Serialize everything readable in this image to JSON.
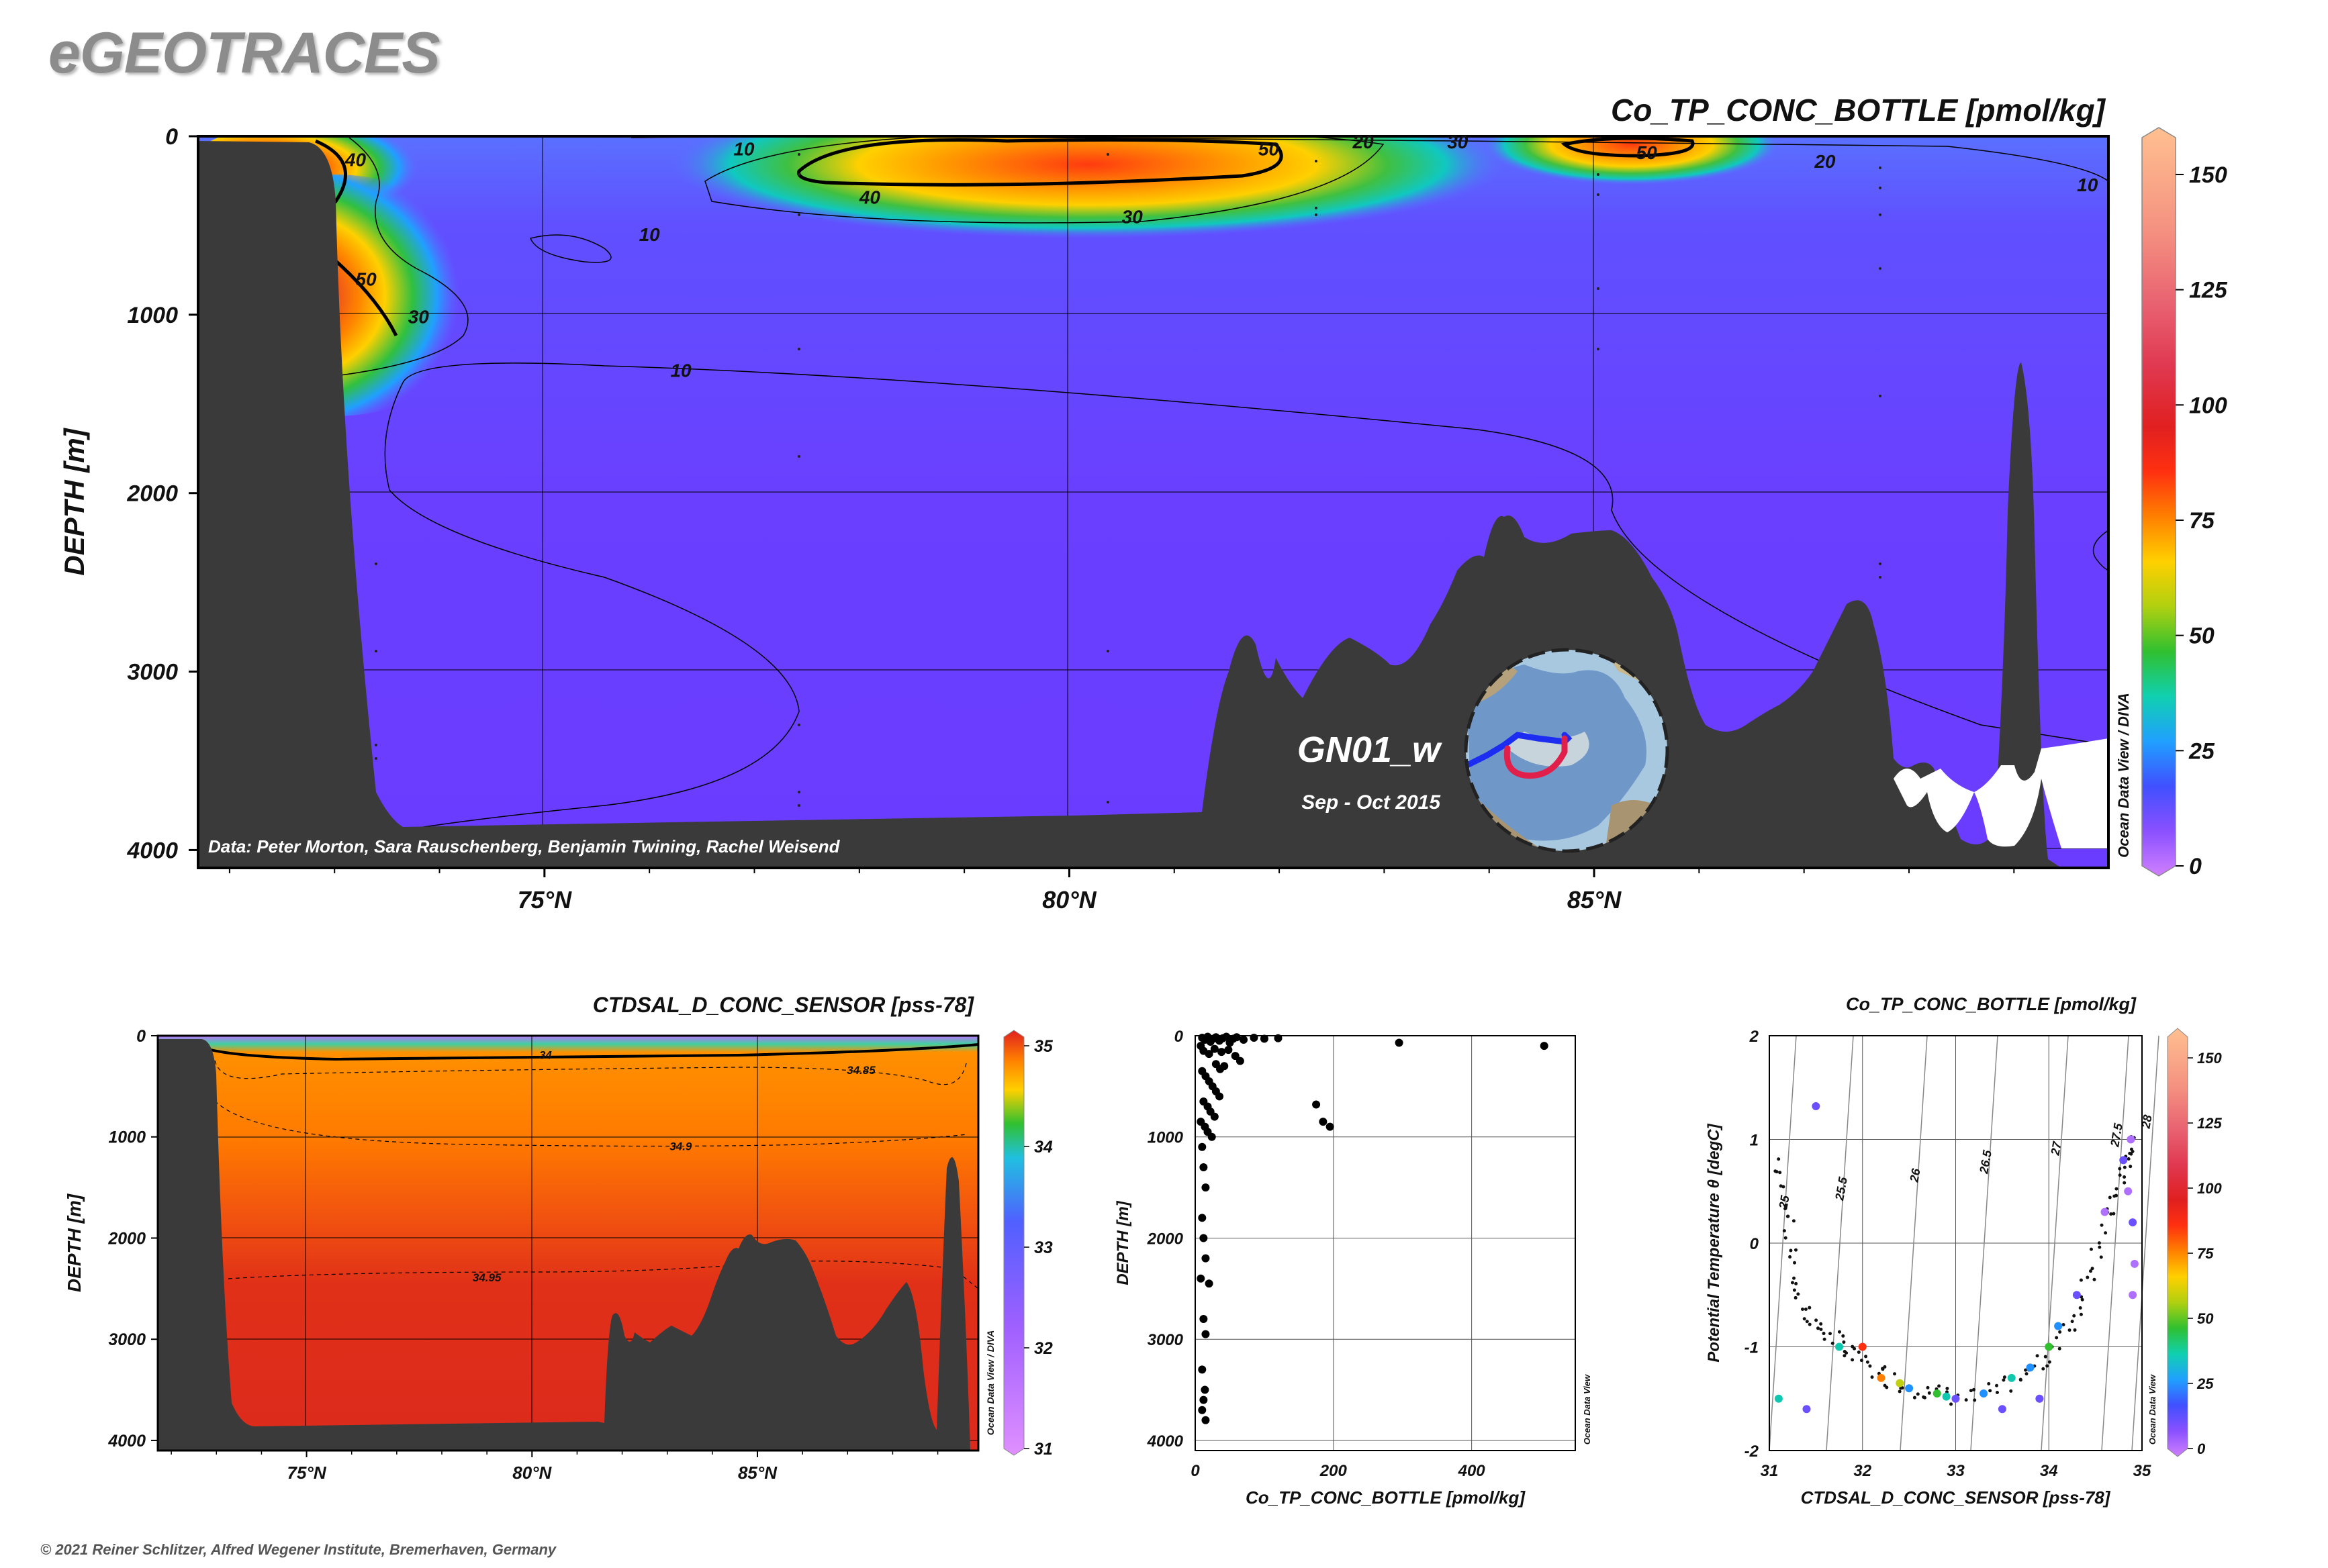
{
  "brand": "eGEOTRACES",
  "footer": "© 2021 Reiner Schlitzer, Alfred Wegener Institute, Bremerhaven, Germany",
  "odv_credit": "Ocean Data View / DIVA",
  "odv_credit_short": "Ocean Data View",
  "chart_data": [
    {
      "id": "main-section",
      "type": "heatmap",
      "title": "Co_TP_CONC_BOTTLE [pmol/kg]",
      "ylabel": "DEPTH [m]",
      "xlabel": "",
      "x_ticks": [
        "75°N",
        "80°N",
        "85°N"
      ],
      "x_tick_values": [
        75,
        80,
        85
      ],
      "xlim": [
        71.7,
        89.9
      ],
      "y_ticks": [
        "0",
        "1000",
        "2000",
        "3000",
        "4000"
      ],
      "y_tick_values": [
        0,
        1000,
        2000,
        3000,
        4000
      ],
      "ylim": [
        4100,
        0
      ],
      "colorbar": {
        "ticks": [
          "0",
          "25",
          "50",
          "75",
          "100",
          "125",
          "150"
        ],
        "values": [
          0,
          25,
          50,
          75,
          100,
          125,
          150
        ],
        "range": [
          0,
          158
        ]
      },
      "contour_labels": [
        {
          "text": "10",
          "lat": 76.0,
          "depth": 550
        },
        {
          "text": "10",
          "lat": 76.3,
          "depth": 1310
        },
        {
          "text": "10",
          "lat": 76.9,
          "depth": 70
        },
        {
          "text": "40",
          "lat": 73.2,
          "depth": 130
        },
        {
          "text": "50",
          "lat": 73.3,
          "depth": 800
        },
        {
          "text": "30",
          "lat": 73.8,
          "depth": 1010
        },
        {
          "text": "40",
          "lat": 78.1,
          "depth": 340
        },
        {
          "text": "30",
          "lat": 80.6,
          "depth": 450
        },
        {
          "text": "50",
          "lat": 81.9,
          "depth": 70
        },
        {
          "text": "20",
          "lat": 82.8,
          "depth": 30
        },
        {
          "text": "30",
          "lat": 83.7,
          "depth": 30
        },
        {
          "text": "50",
          "lat": 85.5,
          "depth": 90
        },
        {
          "text": "20",
          "lat": 87.2,
          "depth": 140
        },
        {
          "text": "10",
          "lat": 89.7,
          "depth": 270
        }
      ],
      "data_credit": "Data: Peter Morton, Sara Rauschenberg, Benjamin Twining, Rachel Weisend",
      "cruise": "GN01_w",
      "cruise_dates": "Sep - Oct 2015"
    },
    {
      "id": "salinity-section",
      "type": "heatmap",
      "title": "CTDSAL_D_CONC_SENSOR [pss-78]",
      "ylabel": "DEPTH [m]",
      "x_ticks": [
        "75°N",
        "80°N",
        "85°N"
      ],
      "x_tick_values": [
        75,
        80,
        85
      ],
      "xlim": [
        71.7,
        89.9
      ],
      "y_ticks": [
        "0",
        "1000",
        "2000",
        "3000",
        "4000"
      ],
      "y_tick_values": [
        0,
        1000,
        2000,
        3000,
        4000
      ],
      "ylim": [
        4100,
        0
      ],
      "colorbar": {
        "ticks": [
          "31",
          "32",
          "33",
          "34",
          "35"
        ],
        "values": [
          31,
          32,
          33,
          34,
          35
        ],
        "range": [
          31,
          35
        ]
      },
      "contour_labels": [
        {
          "text": "34",
          "lat": 80.3,
          "depth": 190
        },
        {
          "text": "34.85",
          "lat": 87.3,
          "depth": 340
        },
        {
          "text": "34.9",
          "lat": 83.3,
          "depth": 1090
        },
        {
          "text": "34.95",
          "lat": 79.0,
          "depth": 2390
        }
      ]
    },
    {
      "id": "profile-scatter",
      "type": "scatter",
      "xlabel": "Co_TP_CONC_BOTTLE [pmol/kg]",
      "ylabel": "DEPTH [m]",
      "x_ticks": [
        "0",
        "200",
        "400"
      ],
      "x_tick_values": [
        0,
        200,
        400
      ],
      "xlim": [
        0,
        550
      ],
      "y_ticks": [
        "0",
        "1000",
        "2000",
        "3000",
        "4000"
      ],
      "y_tick_values": [
        0,
        1000,
        2000,
        3000,
        4000
      ],
      "ylim": [
        4100,
        0
      ],
      "points": [
        [
          10,
          20
        ],
        [
          14,
          40
        ],
        [
          18,
          10
        ],
        [
          22,
          60
        ],
        [
          26,
          30
        ],
        [
          30,
          15
        ],
        [
          35,
          50
        ],
        [
          40,
          25
        ],
        [
          45,
          10
        ],
        [
          50,
          70
        ],
        [
          55,
          30
        ],
        [
          60,
          15
        ],
        [
          70,
          40
        ],
        [
          85,
          20
        ],
        [
          100,
          30
        ],
        [
          120,
          25
        ],
        [
          295,
          70
        ],
        [
          505,
          100
        ],
        [
          8,
          100
        ],
        [
          12,
          150
        ],
        [
          20,
          180
        ],
        [
          28,
          130
        ],
        [
          38,
          160
        ],
        [
          48,
          140
        ],
        [
          58,
          200
        ],
        [
          65,
          250
        ],
        [
          42,
          300
        ],
        [
          36,
          330
        ],
        [
          30,
          280
        ],
        [
          10,
          350
        ],
        [
          15,
          400
        ],
        [
          20,
          450
        ],
        [
          25,
          500
        ],
        [
          30,
          550
        ],
        [
          35,
          600
        ],
        [
          12,
          650
        ],
        [
          18,
          700
        ],
        [
          22,
          750
        ],
        [
          28,
          800
        ],
        [
          8,
          850
        ],
        [
          14,
          900
        ],
        [
          18,
          950
        ],
        [
          24,
          1000
        ],
        [
          10,
          1100
        ],
        [
          12,
          1300
        ],
        [
          15,
          1500
        ],
        [
          10,
          1800
        ],
        [
          12,
          2000
        ],
        [
          15,
          2200
        ],
        [
          8,
          2400
        ],
        [
          20,
          2450
        ],
        [
          12,
          2800
        ],
        [
          15,
          2950
        ],
        [
          10,
          3300
        ],
        [
          14,
          3500
        ],
        [
          12,
          3600
        ],
        [
          10,
          3700
        ],
        [
          15,
          3800
        ],
        [
          175,
          680
        ],
        [
          185,
          850
        ],
        [
          195,
          900
        ]
      ]
    },
    {
      "id": "ts-scatter",
      "type": "scatter",
      "title": "Co_TP_CONC_BOTTLE [pmol/kg]",
      "xlabel": "CTDSAL_D_CONC_SENSOR [pss-78]",
      "ylabel": "Potential Temperature θ [degC]",
      "x_ticks": [
        "31",
        "32",
        "33",
        "34",
        "35"
      ],
      "x_tick_values": [
        31,
        32,
        33,
        34,
        35
      ],
      "xlim": [
        31,
        35
      ],
      "y_ticks": [
        "-2",
        "-1",
        "0",
        "1",
        "2"
      ],
      "y_tick_values": [
        -2,
        -1,
        0,
        1,
        2
      ],
      "ylim": [
        -2,
        2
      ],
      "isopycnal_labels": [
        "25",
        "25.5",
        "26",
        "26.5",
        "27",
        "27.5",
        "28"
      ],
      "colorbar": {
        "ticks": [
          "0",
          "25",
          "50",
          "75",
          "100",
          "125",
          "150"
        ],
        "values": [
          0,
          25,
          50,
          75,
          100,
          125,
          150
        ],
        "range": [
          0,
          158
        ]
      },
      "points": [
        [
          31.5,
          1.32,
          20
        ],
        [
          31.75,
          -1.0,
          45
        ],
        [
          32.2,
          -1.3,
          90
        ],
        [
          32.5,
          -1.4,
          30
        ],
        [
          32.8,
          -1.45,
          60
        ],
        [
          33.0,
          -1.5,
          15
        ],
        [
          33.3,
          -1.45,
          25
        ],
        [
          33.6,
          -1.3,
          40
        ],
        [
          34.0,
          -1.0,
          55
        ],
        [
          34.3,
          -0.5,
          20
        ],
        [
          34.6,
          0.3,
          10
        ],
        [
          34.8,
          0.8,
          18
        ],
        [
          34.85,
          0.5,
          8
        ],
        [
          34.9,
          0.2,
          12
        ],
        [
          34.9,
          -0.5,
          6
        ],
        [
          34.88,
          1.0,
          10
        ],
        [
          34.92,
          -0.2,
          5
        ],
        [
          32.4,
          -1.35,
          70
        ],
        [
          32.9,
          -1.48,
          45
        ],
        [
          33.8,
          -1.2,
          35
        ],
        [
          34.1,
          -0.8,
          25
        ],
        [
          31.1,
          -1.5,
          40
        ],
        [
          31.4,
          -1.6,
          15
        ],
        [
          32.0,
          -1.0,
          110
        ],
        [
          33.5,
          -1.6,
          20
        ],
        [
          33.9,
          -1.5,
          15
        ]
      ]
    }
  ]
}
